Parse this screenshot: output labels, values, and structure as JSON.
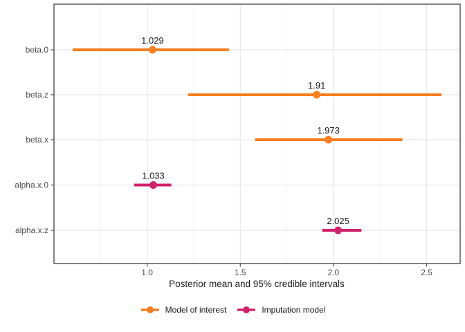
{
  "chart_data": {
    "type": "pointrange",
    "orientation": "horizontal",
    "title": "",
    "xlabel": "Posterior mean and 95% credible intervals",
    "ylabel": "",
    "categories": [
      "beta.0",
      "beta.z",
      "beta.x",
      "alpha.x.0",
      "alpha.x.z"
    ],
    "xlim": [
      0.5,
      2.68
    ],
    "x_ticks": [
      1.0,
      1.5,
      2.0,
      2.5
    ],
    "x_tick_labels": [
      "1.0",
      "1.5",
      "2.0",
      "2.5"
    ],
    "x_minor_ticks": [
      0.75,
      1.25,
      1.75,
      2.25
    ],
    "grid": true,
    "legend_position": "bottom",
    "series": [
      {
        "name": "Model of interest",
        "color": "#F57E20",
        "points": [
          {
            "category": "beta.0",
            "mean": 1.029,
            "lower": 0.6,
            "upper": 1.44,
            "label": "1.029"
          },
          {
            "category": "beta.z",
            "mean": 1.91,
            "lower": 1.22,
            "upper": 2.58,
            "label": "1.91"
          },
          {
            "category": "beta.x",
            "mean": 1.973,
            "lower": 1.58,
            "upper": 2.37,
            "label": "1.973"
          }
        ]
      },
      {
        "name": "Imputation model",
        "color": "#D0226B",
        "points": [
          {
            "category": "alpha.x.0",
            "mean": 1.033,
            "lower": 0.93,
            "upper": 1.13,
            "label": "1.033"
          },
          {
            "category": "alpha.x.z",
            "mean": 2.025,
            "lower": 1.94,
            "upper": 2.15,
            "label": "2.025"
          }
        ]
      }
    ]
  },
  "style": {
    "panel_border_color": "#4d4d4d",
    "grid_major_color": "#e8e8e8",
    "grid_minor_color": "#f1f1f1",
    "tick_color": "#4d4d4d",
    "tick_label_color": "#4d4d4d",
    "axis_title_color": "#1a1a1a",
    "value_label_color": "#1a1a1a",
    "background": "#ffffff"
  }
}
